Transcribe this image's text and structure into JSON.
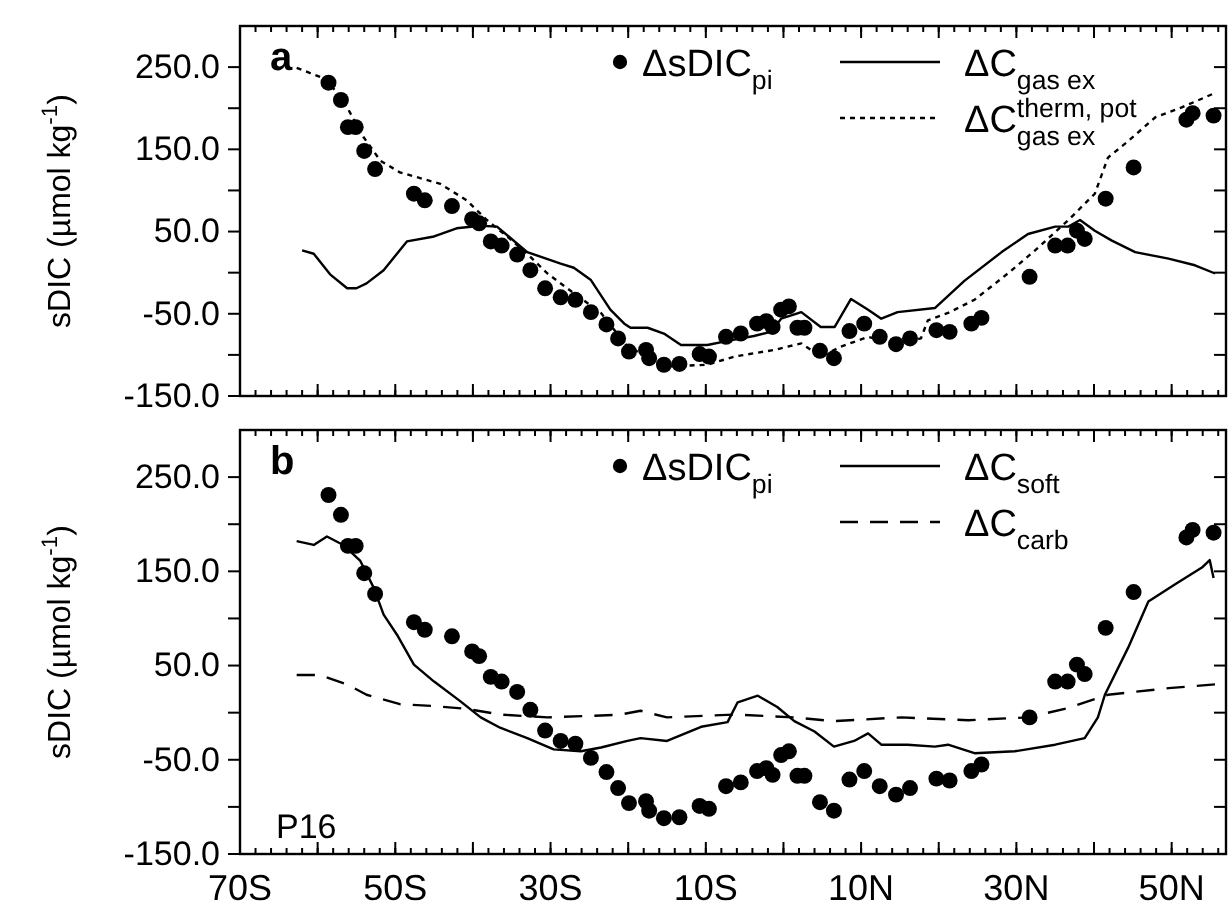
{
  "chart_data": [
    {
      "type": "line",
      "ylabel": "sDIC (µmol kg$^{-1}$)",
      "annotations": [
        "a"
      ],
      "legend": "top right",
      "tick_labels": "y",
      "xlim": [
        -70,
        57
      ],
      "xticks": [
        {
          "value": -70,
          "label": null
        },
        {
          "value": -60,
          "label": null
        },
        {
          "value": -50,
          "label": null
        },
        {
          "value": -40,
          "label": null
        },
        {
          "value": -30,
          "label": null
        },
        {
          "value": -20,
          "label": null
        },
        {
          "value": -10,
          "label": null
        },
        {
          "value": 0,
          "label": null
        },
        {
          "value": 10,
          "label": null
        },
        {
          "value": 20,
          "label": null
        },
        {
          "value": 30,
          "label": null
        },
        {
          "value": 40,
          "label": null
        },
        {
          "value": 50,
          "label": null
        }
      ],
      "ylim": [
        -150,
        300
      ],
      "yticks": [
        {
          "value": -150,
          "label": "-150.0"
        },
        {
          "value": -100,
          "label": null
        },
        {
          "value": -50,
          "label": "-50.0"
        },
        {
          "value": 0,
          "label": null
        },
        {
          "value": 50,
          "label": "50.0"
        },
        {
          "value": 100,
          "label": null
        },
        {
          "value": 150,
          "label": "150.0"
        },
        {
          "value": 200,
          "label": null
        },
        {
          "value": 250,
          "label": "250.0"
        }
      ],
      "series": [
        {
          "name": "ΔsDIC$_{pi}$",
          "type": "scatter",
          "marker": "circle",
          "color": "#000000",
          "x": [
            -58.6,
            -57.0,
            -56.1,
            -55.1,
            -54.0,
            -52.6,
            -47.6,
            -46.2,
            -42.7,
            -40.1,
            -39.2,
            -37.7,
            -36.3,
            -34.3,
            -32.6,
            -30.7,
            -28.7,
            -26.8,
            -24.8,
            -22.8,
            -21.3,
            -19.9,
            -17.7,
            -17.3,
            -15.4,
            -13.4,
            -10.8,
            -9.6,
            -7.4,
            -5.5,
            -3.4,
            -2.2,
            -1.4,
            -0.3,
            0.7,
            1.8,
            2.7,
            4.7,
            6.5,
            8.5,
            10.4,
            12.4,
            14.5,
            16.3,
            19.7,
            21.4,
            24.2,
            25.5,
            31.7,
            35.0,
            36.6,
            37.8,
            38.8,
            41.5,
            45.1,
            51.9,
            52.7,
            55.4
          ],
          "values": [
            231,
            210,
            177,
            177,
            148,
            126,
            96,
            88,
            81,
            65,
            60,
            38,
            33,
            22,
            3,
            -19,
            -30,
            -33,
            -48,
            -63,
            -80,
            -96,
            -94,
            -104,
            -112,
            -111,
            -99,
            -102,
            -78,
            -74,
            -62,
            -59,
            -66,
            -45,
            -41,
            -67,
            -67,
            -95,
            -104,
            -71,
            -62,
            -78,
            -87,
            -80,
            -70,
            -72,
            -62,
            -55,
            -5,
            33,
            33,
            51,
            41,
            90,
            128,
            186,
            194,
            191
          ]
        },
        {
          "name": "ΔC$_{gas ex}$",
          "line_style": "solid",
          "color": "#000000",
          "x": [
            -62.0,
            -60.5,
            -58.4,
            -56.2,
            -55.0,
            -53.7,
            -51.5,
            -48.5,
            -45.0,
            -42.1,
            -39.0,
            -36.9,
            -33.0,
            -28.7,
            -27.0,
            -24.8,
            -22.3,
            -20.5,
            -19.7,
            -17.5,
            -15.4,
            -13.2,
            -9.8,
            -7.2,
            -3.8,
            -1.6,
            -0.3,
            2.3,
            4.8,
            6.6,
            8.7,
            10.9,
            12.6,
            14.7,
            19.5,
            23.3,
            28.1,
            31.5,
            35.0,
            36.7,
            38.2,
            40.1,
            42.3,
            45.3,
            49.6,
            53.0,
            55.6
          ],
          "values": [
            27,
            23,
            -2,
            -19,
            -19,
            -13,
            3,
            38,
            44,
            54,
            57,
            56,
            25,
            11,
            6,
            -9,
            -45,
            -62,
            -67,
            -67,
            -74,
            -88,
            -88,
            -83,
            -77,
            -72,
            -56,
            -48,
            -66,
            -66,
            -32,
            -45,
            -56,
            -48,
            -43,
            -10,
            25,
            47,
            56,
            56,
            64,
            51,
            39,
            25,
            17,
            9,
            -1
          ]
        },
        {
          "name": "ΔC$^{therm, pot}$$_{gas ex}$",
          "line_style": "dotted",
          "color": "#000000",
          "x": [
            -62.7,
            -58.8,
            -56.2,
            -54.1,
            -51.9,
            -49.4,
            -44.2,
            -40.8,
            -38.2,
            -35.6,
            -33.0,
            -30.4,
            -27.0,
            -23.5,
            -20.1,
            -14.9,
            -9.8,
            -6.3,
            -1.2,
            2.3,
            4.8,
            7.4,
            10.9,
            14.3,
            17.7,
            18.6,
            21.2,
            24.6,
            28.9,
            32.4,
            36.7,
            40.1,
            41.8,
            44.4,
            47.9,
            51.3,
            55.2
          ],
          "values": [
            249,
            235,
            201,
            165,
            136,
            122,
            108,
            88,
            64,
            44,
            23,
            -1,
            -25,
            -49,
            -90,
            -114,
            -112,
            -102,
            -94,
            -86,
            -102,
            -90,
            -78,
            -86,
            -80,
            -58,
            -49,
            -33,
            -1,
            27,
            64,
            96,
            140,
            160,
            189,
            201,
            217
          ]
        }
      ]
    },
    {
      "type": "line",
      "ylabel": "sDIC (µmol kg$^{-1}$)",
      "annotations": [
        "b",
        "P16"
      ],
      "legend": "top right",
      "xlim": [
        -70,
        57
      ],
      "xticks": [
        {
          "value": -70,
          "label": "70S"
        },
        {
          "value": -60,
          "label": null
        },
        {
          "value": -50,
          "label": "50S"
        },
        {
          "value": -40,
          "label": null
        },
        {
          "value": -30,
          "label": "30S"
        },
        {
          "value": -20,
          "label": null
        },
        {
          "value": -10,
          "label": "10S"
        },
        {
          "value": 0,
          "label": null
        },
        {
          "value": 10,
          "label": "10N"
        },
        {
          "value": 20,
          "label": null
        },
        {
          "value": 30,
          "label": "30N"
        },
        {
          "value": 40,
          "label": null
        },
        {
          "value": 50,
          "label": "50N"
        }
      ],
      "ylim": [
        -150,
        300
      ],
      "yticks": [
        {
          "value": -150,
          "label": "-150.0"
        },
        {
          "value": -100,
          "label": null
        },
        {
          "value": -50,
          "label": "-50.0"
        },
        {
          "value": 0,
          "label": null
        },
        {
          "value": 50,
          "label": "50.0"
        },
        {
          "value": 100,
          "label": null
        },
        {
          "value": 150,
          "label": "150.0"
        },
        {
          "value": 200,
          "label": null
        },
        {
          "value": 250,
          "label": "250.0"
        }
      ],
      "series": [
        {
          "name": "ΔsDIC$_{pi}$",
          "type": "scatter",
          "marker": "circle",
          "color": "#000000",
          "x": [
            -58.6,
            -57.0,
            -56.1,
            -55.1,
            -54.0,
            -52.6,
            -47.6,
            -46.2,
            -42.7,
            -40.1,
            -39.2,
            -37.7,
            -36.3,
            -34.3,
            -32.6,
            -30.7,
            -28.7,
            -26.8,
            -24.8,
            -22.8,
            -21.3,
            -19.9,
            -17.7,
            -17.3,
            -15.4,
            -13.4,
            -10.8,
            -9.6,
            -7.4,
            -5.5,
            -3.4,
            -2.2,
            -1.4,
            -0.3,
            0.7,
            1.8,
            2.7,
            4.7,
            6.5,
            8.5,
            10.4,
            12.4,
            14.5,
            16.3,
            19.7,
            21.4,
            24.2,
            25.5,
            31.7,
            35.0,
            36.6,
            37.8,
            38.8,
            41.5,
            45.1,
            51.9,
            52.7,
            55.4
          ],
          "values": [
            231,
            210,
            177,
            177,
            148,
            126,
            96,
            88,
            81,
            65,
            60,
            38,
            33,
            22,
            3,
            -19,
            -30,
            -33,
            -48,
            -63,
            -80,
            -96,
            -94,
            -104,
            -112,
            -111,
            -99,
            -102,
            -78,
            -74,
            -62,
            -59,
            -66,
            -45,
            -41,
            -67,
            -67,
            -95,
            -104,
            -71,
            -62,
            -78,
            -87,
            -80,
            -70,
            -72,
            -62,
            -55,
            -5,
            33,
            33,
            51,
            41,
            90,
            128,
            186,
            194,
            191
          ]
        },
        {
          "name": "ΔC$_{soft}$",
          "line_style": "solid",
          "color": "#000000",
          "x": [
            -62.7,
            -60.5,
            -58.8,
            -56.7,
            -54.5,
            -52.8,
            -51.5,
            -49.8,
            -47.6,
            -45.0,
            -41.6,
            -39.0,
            -36.5,
            -33.0,
            -29.6,
            -26.1,
            -23.5,
            -20.1,
            -18.4,
            -15.0,
            -10.6,
            -7.2,
            -5.9,
            -3.3,
            -0.8,
            1.4,
            4.0,
            6.5,
            9.1,
            10.9,
            12.6,
            16.0,
            19.5,
            21.2,
            24.6,
            29.8,
            35.0,
            38.8,
            40.5,
            41.4,
            44.4,
            47.0,
            50.4,
            53.9,
            54.9,
            55.4
          ],
          "values": [
            182,
            178,
            187,
            178,
            161,
            133,
            104,
            83,
            51,
            33,
            12,
            -5,
            -16,
            -27,
            -39,
            -41,
            -37,
            -30,
            -27,
            -30,
            -15,
            -10,
            11,
            18,
            6,
            -9,
            -20,
            -36,
            -30,
            -22,
            -34,
            -34,
            -36,
            -34,
            -43,
            -41,
            -34,
            -27,
            -5,
            19,
            69,
            118,
            136,
            154,
            162,
            143
          ]
        },
        {
          "name": "ΔC$_{carb}$",
          "line_style": "dashed",
          "color": "#000000",
          "x": [
            -62.7,
            -59.7,
            -56.2,
            -53.7,
            -49.4,
            -45.0,
            -40.8,
            -36.5,
            -30.4,
            -23.5,
            -21.0,
            -18.4,
            -15.0,
            -6.3,
            1.4,
            6.5,
            15.2,
            23.8,
            31.5,
            36.7,
            41.8,
            49.6,
            55.6
          ],
          "values": [
            40,
            40,
            30,
            19,
            9,
            7,
            4,
            -2,
            -5,
            -3,
            -2,
            2,
            -5,
            -2,
            -5,
            -9,
            -5,
            -8,
            -5,
            5,
            19,
            26,
            30
          ]
        }
      ]
    }
  ]
}
